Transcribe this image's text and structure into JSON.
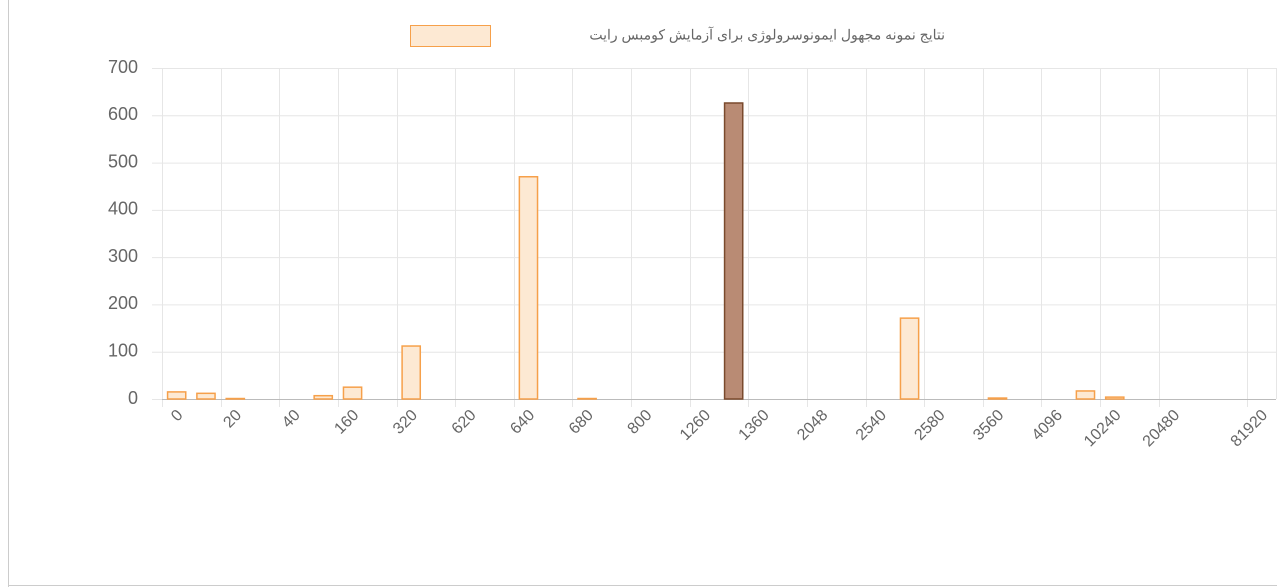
{
  "chart_data": {
    "type": "bar",
    "legend": "نتایج نمونه مجهول ایمونوسرولوژی برای آزمایش کومبس رایت",
    "categories": [
      "0",
      null,
      "20",
      null,
      "40",
      null,
      "160",
      null,
      "320",
      null,
      "620",
      null,
      "640",
      null,
      "680",
      null,
      "800",
      null,
      "1260",
      null,
      "1360",
      null,
      "2048",
      null,
      "2540",
      null,
      "2580",
      null,
      "3560",
      null,
      "4096",
      null,
      "10240",
      null,
      "20480",
      null,
      null,
      "81920"
    ],
    "values": [
      15,
      12,
      1,
      0,
      0,
      7,
      25,
      0,
      112,
      0,
      0,
      0,
      470,
      0,
      1,
      0,
      0,
      0,
      0,
      626,
      0,
      0,
      0,
      0,
      0,
      171,
      0,
      0,
      2,
      0,
      0,
      17,
      4,
      0,
      0,
      0,
      0,
      0
    ],
    "colors": [
      "#fde9d3",
      "#fde9d3",
      "#fde9d3",
      "#fde9d3",
      "#fde9d3",
      "#fde9d3",
      "#fde9d3",
      "#fde9d3",
      "#fde9d3",
      "#fde9d3",
      "#fde9d3",
      "#fde9d3",
      "#fde9d3",
      "#fde9d3",
      "#fde9d3",
      "#fde9d3",
      "#fde9d3",
      "#fde9d3",
      "#fde9d3",
      "#b98b74",
      "#fde9d3",
      "#fde9d3",
      "#fde9d3",
      "#fde9d3",
      "#fde9d3",
      "#fde9d3",
      "#fde9d3",
      "#fde9d3",
      "#fde9d3",
      "#fde9d3",
      "#fde9d3",
      "#fde9d3",
      "#fde9d3",
      "#fde9d3",
      "#fde9d3",
      "#fde9d3",
      "#fde9d3",
      "#fde9d3"
    ],
    "border_colors": [
      "#f6a04a",
      "#f6a04a",
      "#f6a04a",
      "#f6a04a",
      "#f6a04a",
      "#f6a04a",
      "#f6a04a",
      "#f6a04a",
      "#f6a04a",
      "#f6a04a",
      "#f6a04a",
      "#f6a04a",
      "#f6a04a",
      "#f6a04a",
      "#f6a04a",
      "#f6a04a",
      "#f6a04a",
      "#f6a04a",
      "#f6a04a",
      "#7a4a2d",
      "#f6a04a",
      "#f6a04a",
      "#f6a04a",
      "#f6a04a",
      "#f6a04a",
      "#f6a04a",
      "#f6a04a",
      "#f6a04a",
      "#f6a04a",
      "#f6a04a",
      "#f6a04a",
      "#f6a04a",
      "#f6a04a",
      "#f6a04a",
      "#f6a04a",
      "#f6a04a",
      "#f6a04a",
      "#f6a04a"
    ],
    "legend_color": "#fde9d3",
    "legend_border": "#f6a04a",
    "ylim": [
      0,
      700
    ],
    "yticks": [
      0,
      100,
      200,
      300,
      400,
      500,
      600,
      700
    ],
    "grid": true
  }
}
